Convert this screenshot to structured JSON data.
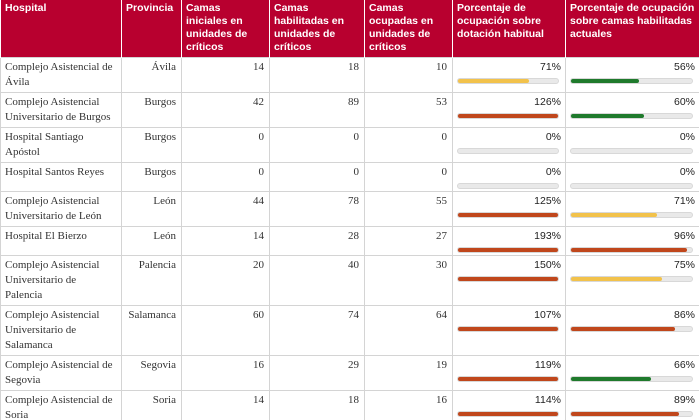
{
  "colors": {
    "header_bg": "#b8002f",
    "red": "#c0471c",
    "yellow": "#f2c24b",
    "green": "#1f7a2c"
  },
  "headers": [
    "Hospital",
    "Provincia",
    "Camas iniciales en unidades de críticos",
    "Camas habilitadas en unidades de críticos",
    "Camas ocupadas en unidades de críticos",
    "Porcentaje de ocupación sobre dotación habitual",
    "Porcentaje de ocupación sobre camas habilitadas actuales"
  ],
  "rows": [
    {
      "hospital": "Complejo Asistencial de Ávila",
      "provincia": "Ávila",
      "iniciales": "14",
      "habilitadas": "18",
      "ocupadas": "10",
      "pct_dot": "71%",
      "dot_value": 0.71,
      "dot_color": "#f2c24b",
      "pct_hab": "56%",
      "hab_value": 0.56,
      "hab_color": "#1f7a2c"
    },
    {
      "hospital": "Complejo Asistencial Universitario de Burgos",
      "provincia": "Burgos",
      "iniciales": "42",
      "habilitadas": "89",
      "ocupadas": "53",
      "pct_dot": "126%",
      "dot_value": 1.0,
      "dot_color": "#c0471c",
      "pct_hab": "60%",
      "hab_value": 0.6,
      "hab_color": "#1f7a2c"
    },
    {
      "hospital": "Hospital Santiago Apóstol",
      "provincia": "Burgos",
      "iniciales": "0",
      "habilitadas": "0",
      "ocupadas": "0",
      "pct_dot": "0%",
      "dot_value": null,
      "dot_color": "",
      "pct_hab": "0%",
      "hab_value": null,
      "hab_color": ""
    },
    {
      "hospital": "Hospital Santos Reyes",
      "provincia": "Burgos",
      "iniciales": "0",
      "habilitadas": "0",
      "ocupadas": "0",
      "pct_dot": "0%",
      "dot_value": null,
      "dot_color": "",
      "pct_hab": "0%",
      "hab_value": null,
      "hab_color": ""
    },
    {
      "hospital": "Complejo Asistencial Universitario de León",
      "provincia": "León",
      "iniciales": "44",
      "habilitadas": "78",
      "ocupadas": "55",
      "pct_dot": "125%",
      "dot_value": 1.0,
      "dot_color": "#c0471c",
      "pct_hab": "71%",
      "hab_value": 0.71,
      "hab_color": "#f2c24b"
    },
    {
      "hospital": "Hospital El Bierzo",
      "provincia": "León",
      "iniciales": "14",
      "habilitadas": "28",
      "ocupadas": "27",
      "pct_dot": "193%",
      "dot_value": 1.0,
      "dot_color": "#c0471c",
      "pct_hab": "96%",
      "hab_value": 0.96,
      "hab_color": "#c0471c"
    },
    {
      "hospital": "Complejo Asistencial Universitario de Palencia",
      "provincia": "Palencia",
      "iniciales": "20",
      "habilitadas": "40",
      "ocupadas": "30",
      "pct_dot": "150%",
      "dot_value": 1.0,
      "dot_color": "#c0471c",
      "pct_hab": "75%",
      "hab_value": 0.75,
      "hab_color": "#f2c24b"
    },
    {
      "hospital": "Complejo Asistencial Universitario de Salamanca",
      "provincia": "Salamanca",
      "iniciales": "60",
      "habilitadas": "74",
      "ocupadas": "64",
      "pct_dot": "107%",
      "dot_value": 1.0,
      "dot_color": "#c0471c",
      "pct_hab": "86%",
      "hab_value": 0.86,
      "hab_color": "#c0471c"
    },
    {
      "hospital": "Complejo Asistencial de Segovia",
      "provincia": "Segovia",
      "iniciales": "16",
      "habilitadas": "29",
      "ocupadas": "19",
      "pct_dot": "119%",
      "dot_value": 1.0,
      "dot_color": "#c0471c",
      "pct_hab": "66%",
      "hab_value": 0.66,
      "hab_color": "#1f7a2c"
    },
    {
      "hospital": "Complejo Asistencial de Soria",
      "provincia": "Soria",
      "iniciales": "14",
      "habilitadas": "18",
      "ocupadas": "16",
      "pct_dot": "114%",
      "dot_value": 1.0,
      "dot_color": "#c0471c",
      "pct_hab": "89%",
      "hab_value": 0.89,
      "hab_color": "#c0471c"
    }
  ]
}
